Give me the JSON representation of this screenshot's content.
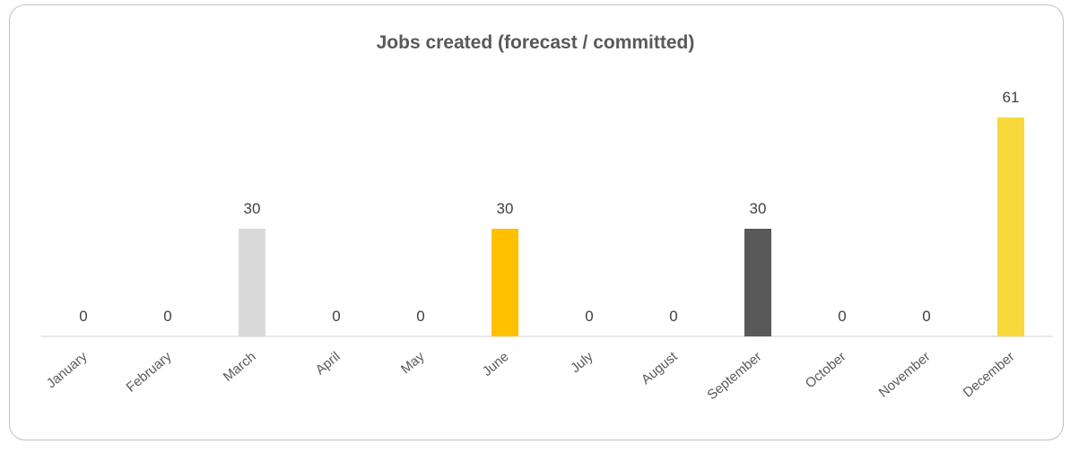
{
  "chart_data": {
    "type": "bar",
    "title": "Jobs created (forecast / committed)",
    "xlabel": "",
    "ylabel": "",
    "categories": [
      "January",
      "February",
      "March",
      "April",
      "May",
      "June",
      "July",
      "August",
      "September",
      "October",
      "November",
      "December"
    ],
    "values": [
      0,
      0,
      30,
      0,
      0,
      30,
      0,
      0,
      30,
      0,
      0,
      61
    ],
    "bar_colors": [
      "#d9d9d9",
      "#d9d9d9",
      "#d9d9d9",
      "#ffc000",
      "#ffc000",
      "#ffc000",
      "#595959",
      "#595959",
      "#595959",
      "#f9d83c",
      "#f9d83c",
      "#f9d83c"
    ],
    "ylim": [
      0,
      65
    ],
    "grid": false,
    "legend": "none",
    "data_labels": true
  },
  "colors": {
    "title": "#595959",
    "axis_line": "#d9d9d9",
    "frame_border": "#b9c4c1",
    "label_text": "#404040"
  }
}
